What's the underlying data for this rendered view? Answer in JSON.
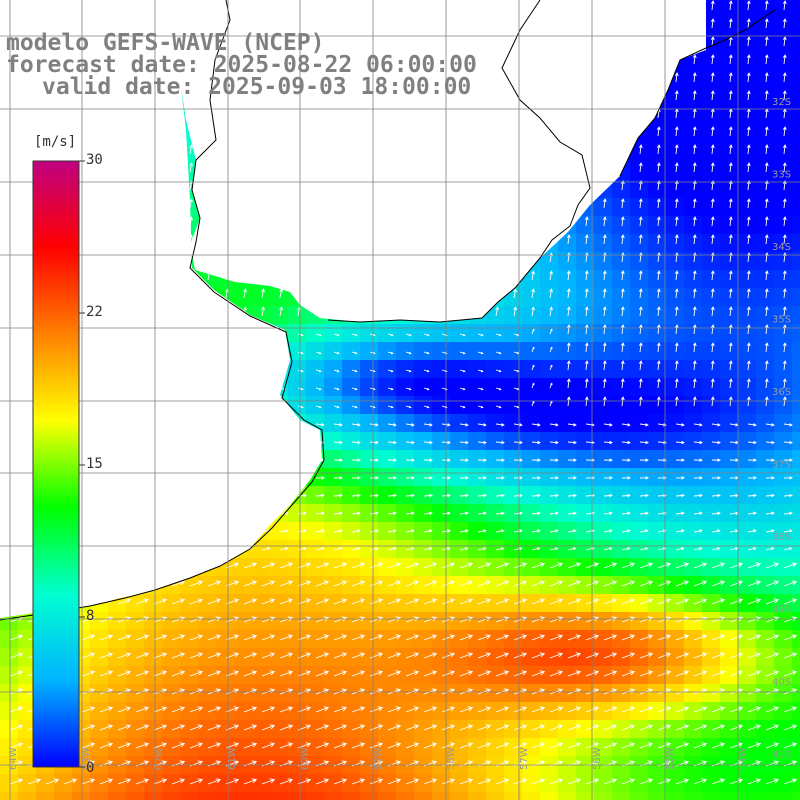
{
  "header": {
    "line1": "modelo GEFS-WAVE (NCEP)",
    "line2": "forecast date: 2025-08-22 06:00:00",
    "line3": "valid date: 2025-09-03 18:00:00"
  },
  "colorbar": {
    "unit": "[m/s]",
    "ticks": [
      "30",
      "22",
      "15",
      "8",
      "0"
    ],
    "tick_values": [
      30,
      22,
      15,
      8,
      0
    ],
    "min": 0,
    "max": 30,
    "stops": [
      "#0000ff",
      "#00b4ff",
      "#00ffd0",
      "#00ff00",
      "#ffff00",
      "#ff8000",
      "#ff0000",
      "#c00080"
    ]
  },
  "map": {
    "grid_color": "#808080",
    "land_color": "#ffffff",
    "coast_color": "#000000",
    "lat_labels": [
      "32S",
      "33S",
      "34S",
      "35S",
      "36S",
      "37S",
      "38S",
      "39S",
      "40S",
      "41S"
    ],
    "lon_labels": [
      "64W",
      "63W",
      "62W",
      "61W",
      "60W",
      "59W",
      "58W",
      "57W",
      "56W",
      "55W",
      "54W"
    ]
  }
}
